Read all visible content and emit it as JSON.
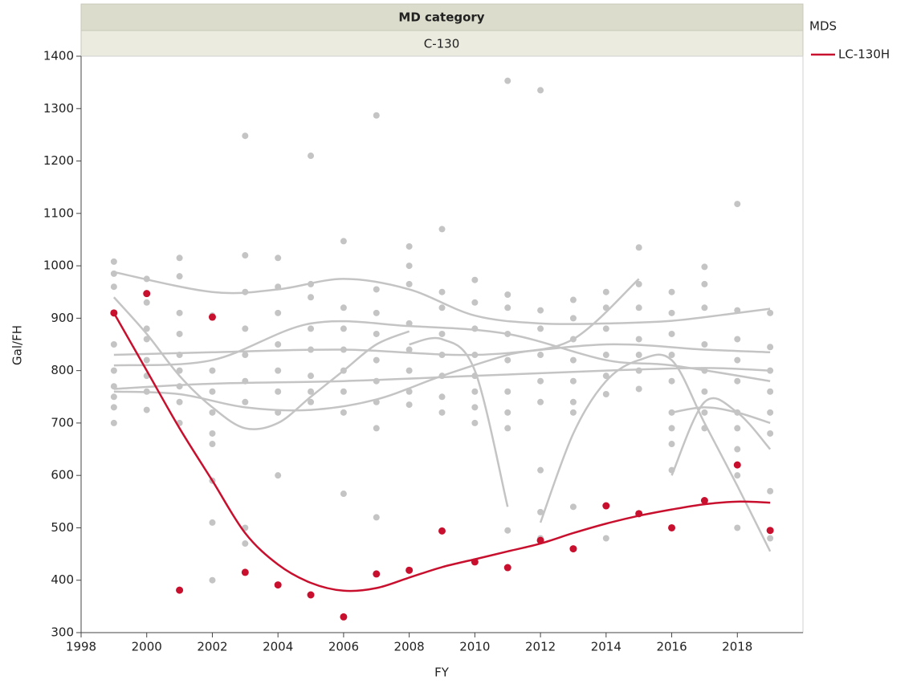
{
  "chart_data": {
    "type": "scatter",
    "header": "MD category",
    "subheader": "C-130",
    "legend_title": "MDS",
    "x_label": "FY",
    "y_label": "Gal/FH",
    "xlim": [
      1998,
      2020
    ],
    "xticks": [
      1998,
      2000,
      2002,
      2004,
      2006,
      2008,
      2010,
      2012,
      2014,
      2016,
      2018
    ],
    "ylim": [
      300,
      1400
    ],
    "yticks": [
      300,
      400,
      500,
      600,
      700,
      800,
      900,
      1000,
      1100,
      1200,
      1300,
      1400
    ],
    "series": [
      {
        "name": "LC-130H",
        "color": "#c8102e",
        "x": [
          1999,
          2000,
          2001,
          2002,
          2003,
          2004,
          2005,
          2006,
          2007,
          2008,
          2009,
          2010,
          2011,
          2012,
          2013,
          2014,
          2015,
          2016,
          2017,
          2018,
          2019
        ],
        "values": [
          910,
          947,
          381,
          902,
          415,
          391,
          372,
          330,
          412,
          419,
          494,
          435,
          424,
          476,
          460,
          542,
          527,
          500,
          552,
          620,
          495
        ],
        "fit_x": [
          1999,
          2000,
          2001,
          2002,
          2003,
          2004,
          2005,
          2006,
          2007,
          2008,
          2009,
          2010,
          2011,
          2012,
          2013,
          2014,
          2015,
          2016,
          2017,
          2018,
          2019
        ],
        "fit_values": [
          910,
          800,
          690,
          590,
          490,
          430,
          395,
          380,
          385,
          405,
          425,
          440,
          455,
          470,
          490,
          508,
          523,
          535,
          545,
          550,
          548
        ]
      },
      {
        "color": "#c4c4c4",
        "x": [
          1999,
          1999,
          1999,
          1999,
          1999,
          1999,
          1999,
          1999,
          1999,
          2000,
          2000,
          2000,
          2000,
          2000,
          2000,
          2000,
          2000,
          2001,
          2001,
          2001,
          2001,
          2001,
          2001,
          2001,
          2001,
          2001,
          2002,
          2002,
          2002,
          2002,
          2002,
          2002,
          2002,
          2002,
          2002,
          2003,
          2003,
          2003,
          2003,
          2003,
          2003,
          2003,
          2003,
          2003,
          2004,
          2004,
          2004,
          2004,
          2004,
          2004,
          2004,
          2004,
          2005,
          2005,
          2005,
          2005,
          2005,
          2005,
          2005,
          2005,
          2006,
          2006,
          2006,
          2006,
          2006,
          2006,
          2006,
          2006,
          2007,
          2007,
          2007,
          2007,
          2007,
          2007,
          2007,
          2007,
          2007,
          2008,
          2008,
          2008,
          2008,
          2008,
          2008,
          2008,
          2008,
          2009,
          2009,
          2009,
          2009,
          2009,
          2009,
          2009,
          2009,
          2010,
          2010,
          2010,
          2010,
          2010,
          2010,
          2010,
          2010,
          2011,
          2011,
          2011,
          2011,
          2011,
          2011,
          2011,
          2011,
          2011,
          2012,
          2012,
          2012,
          2012,
          2012,
          2012,
          2012,
          2012,
          2012,
          2013,
          2013,
          2013,
          2013,
          2013,
          2013,
          2013,
          2013,
          2014,
          2014,
          2014,
          2014,
          2014,
          2014,
          2014,
          2015,
          2015,
          2015,
          2015,
          2015,
          2015,
          2015,
          2016,
          2016,
          2016,
          2016,
          2016,
          2016,
          2016,
          2016,
          2016,
          2017,
          2017,
          2017,
          2017,
          2017,
          2017,
          2017,
          2017,
          2018,
          2018,
          2018,
          2018,
          2018,
          2018,
          2018,
          2018,
          2018,
          2018,
          2019,
          2019,
          2019,
          2019,
          2019,
          2019,
          2019,
          2019
        ],
        "values": [
          1008,
          985,
          960,
          850,
          800,
          770,
          750,
          730,
          700,
          975,
          930,
          880,
          860,
          820,
          790,
          760,
          725,
          1015,
          980,
          910,
          870,
          830,
          800,
          770,
          740,
          700,
          905,
          800,
          760,
          720,
          680,
          660,
          590,
          510,
          400,
          1248,
          1020,
          950,
          880,
          830,
          780,
          740,
          500,
          470,
          1015,
          960,
          910,
          850,
          800,
          760,
          720,
          600,
          1210,
          965,
          940,
          880,
          840,
          790,
          760,
          740,
          1047,
          920,
          880,
          840,
          800,
          760,
          720,
          565,
          1287,
          955,
          910,
          870,
          820,
          780,
          740,
          690,
          520,
          1037,
          1000,
          965,
          890,
          840,
          800,
          760,
          735,
          1070,
          950,
          920,
          870,
          830,
          790,
          750,
          720,
          973,
          930,
          880,
          830,
          790,
          760,
          730,
          700,
          1353,
          945,
          920,
          870,
          820,
          760,
          720,
          690,
          495,
          1335,
          915,
          880,
          830,
          780,
          740,
          610,
          530,
          480,
          935,
          900,
          860,
          820,
          780,
          740,
          720,
          540,
          950,
          920,
          880,
          830,
          790,
          755,
          480,
          1035,
          965,
          920,
          860,
          830,
          800,
          765,
          950,
          910,
          870,
          830,
          780,
          720,
          690,
          660,
          610,
          998,
          965,
          920,
          850,
          800,
          760,
          720,
          690,
          1118,
          915,
          860,
          820,
          780,
          720,
          690,
          650,
          600,
          500,
          910,
          845,
          800,
          760,
          720,
          680,
          570,
          480
        ]
      }
    ],
    "curves": [
      {
        "color": "#c4c4c4",
        "x": [
          1999,
          2002,
          2004,
          2006,
          2008,
          2010,
          2012,
          2014,
          2016,
          2018,
          2019
        ],
        "values": [
          988,
          950,
          955,
          975,
          955,
          905,
          890,
          890,
          895,
          910,
          918
        ]
      },
      {
        "color": "#c4c4c4",
        "x": [
          1999,
          2002,
          2006,
          2010,
          2014,
          2017,
          2019
        ],
        "values": [
          830,
          835,
          840,
          830,
          850,
          840,
          835
        ]
      },
      {
        "color": "#c4c4c4",
        "x": [
          1999,
          2002,
          2006,
          2010,
          2014,
          2017,
          2019
        ],
        "values": [
          765,
          775,
          780,
          790,
          800,
          805,
          800
        ]
      },
      {
        "color": "#c4c4c4",
        "x": [
          1999,
          2001,
          2003,
          2005,
          2007,
          2009,
          2011,
          2013,
          2015
        ],
        "values": [
          760,
          755,
          730,
          725,
          745,
          790,
          830,
          860,
          975
        ]
      },
      {
        "color": "#c4c4c4",
        "x": [
          1999,
          2000,
          2001,
          2002,
          2003,
          2004,
          2005,
          2006,
          2007,
          2008
        ],
        "values": [
          940,
          870,
          790,
          730,
          690,
          700,
          750,
          800,
          850,
          875
        ]
      },
      {
        "color": "#c4c4c4",
        "x": [
          2008,
          2009,
          2010,
          2011
        ],
        "values": [
          850,
          860,
          800,
          540
        ]
      },
      {
        "color": "#c4c4c4",
        "x": [
          2012,
          2013,
          2014,
          2015,
          2016,
          2017,
          2018,
          2019
        ],
        "values": [
          510,
          680,
          780,
          820,
          820,
          700,
          580,
          455
        ]
      },
      {
        "color": "#c4c4c4",
        "x": [
          2016,
          2017,
          2018,
          2019
        ],
        "values": [
          720,
          730,
          720,
          700
        ]
      },
      {
        "color": "#c4c4c4",
        "x": [
          2016,
          2017,
          2018,
          2019
        ],
        "values": [
          600,
          740,
          720,
          650
        ]
      },
      {
        "color": "#c4c4c4",
        "x": [
          1999,
          2002,
          2005,
          2008,
          2011,
          2014,
          2016,
          2019
        ],
        "values": [
          810,
          820,
          890,
          885,
          870,
          820,
          810,
          780
        ]
      }
    ]
  }
}
